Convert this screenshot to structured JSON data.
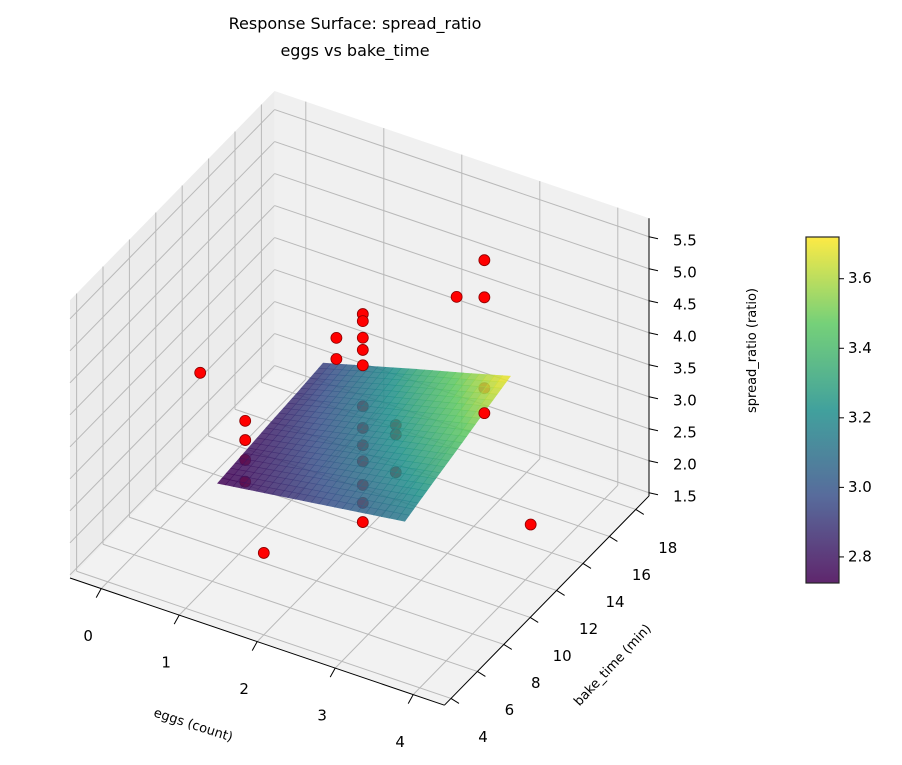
{
  "chart_data": {
    "type": "surface3d+scatter",
    "title": "Response Surface: spread_ratio",
    "subtitle": "eggs vs bake_time",
    "xlabel": "eggs (count)",
    "ylabel": "bake_time (min)",
    "zlabel": "spread_ratio (ratio)",
    "xlim": [
      -0.4,
      4.4
    ],
    "ylim": [
      3.5,
      19
    ],
    "zlim": [
      1.45,
      5.79
    ],
    "xticks": [
      0,
      1,
      2,
      3,
      4
    ],
    "yticks": [
      4,
      6,
      8,
      10,
      12,
      14,
      16,
      18
    ],
    "zticks": [
      "1.5",
      "2.0",
      "2.5",
      "3.0",
      "3.5",
      "4.0",
      "4.5",
      "5.0",
      "5.5"
    ],
    "grid": true,
    "surface": {
      "colormap": "viridis",
      "x": [
        0.9,
        1.5,
        2.1,
        2.7,
        3.3
      ],
      "y": [
        7,
        9,
        11,
        13,
        15
      ],
      "z": [
        [
          2.73,
          2.83,
          2.93,
          3.03,
          3.13
        ],
        [
          2.78,
          2.9,
          3.03,
          3.15,
          3.28
        ],
        [
          2.83,
          2.97,
          3.12,
          3.27,
          3.42
        ],
        [
          2.87,
          3.05,
          3.22,
          3.39,
          3.57
        ],
        [
          2.92,
          3.12,
          3.32,
          3.51,
          3.71
        ]
      ]
    },
    "colorbar": {
      "range": [
        2.725,
        3.72
      ],
      "ticks": [
        "2.8",
        "3.0",
        "3.2",
        "3.4",
        "3.6"
      ],
      "placement": "right"
    },
    "points": {
      "color": "#ff0000",
      "x": [
        0,
        1,
        1,
        1,
        1,
        2,
        2,
        2,
        2,
        2,
        2,
        2,
        2,
        2,
        2,
        2,
        2,
        2,
        2,
        2,
        2,
        2,
        2,
        3,
        3,
        3,
        3,
        3,
        4
      ],
      "y": [
        11,
        8.5,
        8.5,
        8.5,
        8.5,
        4,
        9.5,
        9.5,
        11.5,
        11.5,
        11.5,
        11.5,
        11.5,
        11.5,
        11.5,
        11.5,
        11.5,
        11.5,
        11.5,
        11.5,
        14,
        14,
        14,
        12.7,
        14.8,
        14.8,
        14.8,
        14.8,
        12.4
      ],
      "z": [
        3.24,
        3.43,
        3.13,
        2.82,
        2.48,
        2.73,
        4.93,
        4.6,
        4.88,
        4.77,
        4.51,
        4.32,
        4.08,
        3.44,
        3.1,
        2.83,
        2.58,
        2.21,
        1.93,
        1.63,
        2.62,
        2.47,
        1.88,
        5.31,
        5.44,
        4.86,
        3.44,
        3.05,
        2.23
      ]
    }
  }
}
